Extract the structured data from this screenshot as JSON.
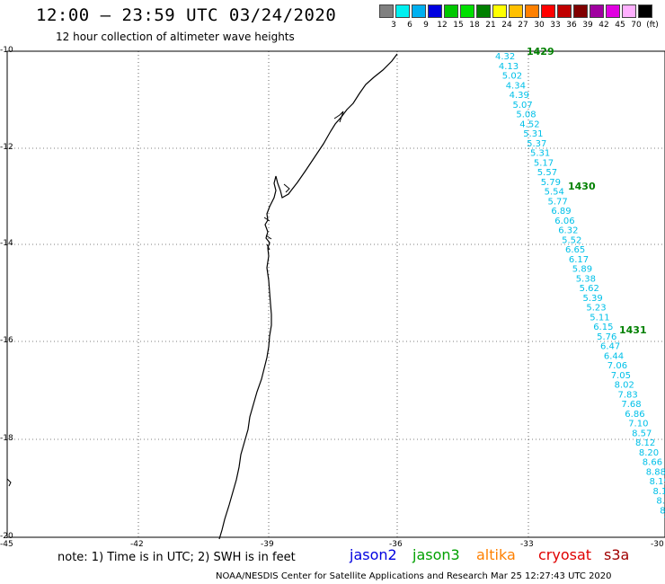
{
  "header": {
    "title": "12:00 – 23:59 UTC 03/24/2020",
    "subtitle": "12 hour collection of altimeter wave heights"
  },
  "scale": {
    "labels": [
      "3",
      "6",
      "9",
      "12",
      "15",
      "18",
      "21",
      "24",
      "27",
      "30",
      "33",
      "36",
      "39",
      "42",
      "45",
      "70",
      "(ft)"
    ],
    "colors": [
      "#808080",
      "#00f0f0",
      "#00b0f0",
      "#0000e0",
      "#00c800",
      "#00e000",
      "#008000",
      "#ffff00",
      "#ffc000",
      "#ff8000",
      "#ff0000",
      "#c00000",
      "#800000",
      "#a000a0",
      "#e000e0",
      "#ffb0ff",
      "#000000"
    ]
  },
  "map": {
    "lat_labels": [
      "-10",
      "-12",
      "-14",
      "-16",
      "-18",
      "-20"
    ],
    "lon_labels": [
      "-45",
      "-42",
      "-39",
      "-36",
      "-33",
      "-30"
    ],
    "lon_range": [
      -45,
      -30
    ],
    "lat_range": [
      -20,
      -10
    ],
    "grid": true
  },
  "track": {
    "color": "#00c0e8",
    "values": [
      "4.32",
      "4.13",
      "5.02",
      "4.34",
      "4.39",
      "5.07",
      "5.08",
      "4.52",
      "5.31",
      "5.37",
      "5.31",
      "5.17",
      "5.57",
      "5.79",
      "5.54",
      "5.77",
      "6.89",
      "6.06",
      "6.32",
      "5.52",
      "6.65",
      "6.17",
      "5.89",
      "5.38",
      "5.62",
      "5.39",
      "5.23",
      "5.11",
      "6.15",
      "5.76",
      "6.47",
      "6.44",
      "7.06",
      "7.05",
      "8.02",
      "7.83",
      "7.68",
      "6.86",
      "7.10",
      "8.57",
      "8.12",
      "8.20",
      "8.66",
      "8.88",
      "8.19",
      "8.15",
      "8.1",
      "8.",
      "7.",
      "8"
    ],
    "times": [
      {
        "label": "1429",
        "color": "#008000"
      },
      {
        "label": "1430",
        "color": "#008000"
      },
      {
        "label": "1431",
        "color": "#008000"
      }
    ]
  },
  "footer": {
    "note": "note: 1) Time is in UTC; 2) SWH is in feet",
    "satellites": [
      {
        "name": "jason2",
        "color": "#0000e0"
      },
      {
        "name": "jason3",
        "color": "#00a000"
      },
      {
        "name": "altika",
        "color": "#ff8000"
      },
      {
        "name": "cryosat",
        "color": "#e00000"
      },
      {
        "name": "s3a",
        "color": "#a00000"
      }
    ],
    "credit": "NOAA/NESDIS Center for Satellite Applications and Research   Mar 25 12:27:43 UTC 2020"
  }
}
